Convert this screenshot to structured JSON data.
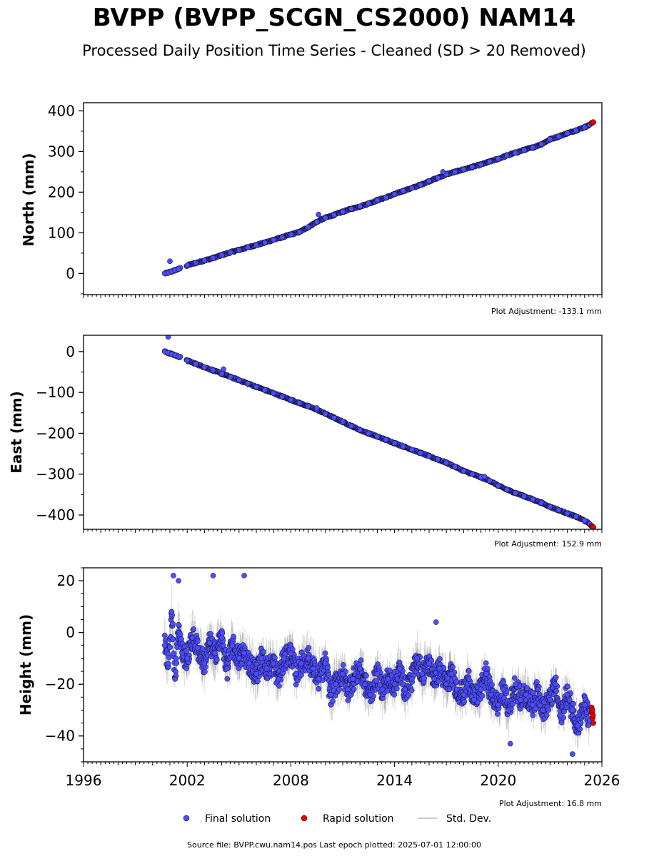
{
  "figure": {
    "title": "BVPP (BVPP_SCGN_CS2000) NAM14",
    "subtitle": "Processed Daily Position Time Series - Cleaned (SD > 20 Removed)",
    "source_note": "Source file: BVPP.cwu.nam14.pos  Last epoch plotted: 2025-07-01 12:00:00"
  },
  "legend": {
    "final_label": "Final solution",
    "rapid_label": "Rapid solution",
    "std_label": "Std. Dev."
  },
  "colors": {
    "final": "#4d4dff",
    "final_edge": "#000000",
    "rapid": "#e60000",
    "std": "#777777"
  },
  "chart_data": [
    {
      "type": "scatter",
      "ylabel": "North (mm)",
      "adjustment": "Plot Adjustment: -133.1 mm",
      "xlim": [
        1996,
        2026
      ],
      "ylim": [
        -52,
        420
      ],
      "yticks": [
        0,
        100,
        200,
        300,
        400
      ],
      "ytick_labels": [
        "0",
        "100",
        "200",
        "300",
        "400"
      ],
      "minor_ystep": 50,
      "series": [
        {
          "name": "Final solution",
          "kind": "final",
          "x": [
            2000.7,
            2000.9,
            2001.1,
            2001.3,
            2001.5,
            2002.0,
            2002.5,
            2003.0,
            2003.5,
            2004.0,
            2004.5,
            2005.0,
            2005.5,
            2006.0,
            2006.5,
            2007.0,
            2007.5,
            2008.0,
            2008.5,
            2009.0,
            2009.5,
            2010.0,
            2010.5,
            2011.0,
            2011.5,
            2012.0,
            2012.5,
            2013.0,
            2013.5,
            2014.0,
            2014.5,
            2015.0,
            2015.5,
            2016.0,
            2016.5,
            2017.0,
            2017.5,
            2018.0,
            2018.5,
            2019.0,
            2019.5,
            2020.0,
            2020.5,
            2021.0,
            2021.5,
            2022.0,
            2022.5,
            2023.0,
            2023.5,
            2024.0,
            2024.5,
            2025.0,
            2025.3
          ],
          "y": [
            0,
            2,
            5,
            8,
            11,
            20,
            26,
            32,
            38,
            45,
            52,
            58,
            64,
            70,
            76,
            83,
            89,
            96,
            102,
            114,
            127,
            137,
            144,
            152,
            159,
            165,
            172,
            180,
            187,
            195,
            203,
            210,
            218,
            227,
            235,
            244,
            250,
            256,
            262,
            268,
            275,
            282,
            290,
            297,
            304,
            310,
            318,
            330,
            337,
            345,
            352,
            360,
            366
          ]
        },
        {
          "name": "Rapid solution",
          "kind": "rapid",
          "x": [
            2025.4,
            2025.45,
            2025.5
          ],
          "y": [
            370,
            371,
            372
          ]
        }
      ],
      "outliers": {
        "x": [
          2001.0,
          2009.6,
          2016.8
        ],
        "y": [
          30,
          145,
          250
        ]
      }
    },
    {
      "type": "scatter",
      "ylabel": "East (mm)",
      "adjustment": "Plot Adjustment: 152.9 mm",
      "xlim": [
        1996,
        2026
      ],
      "ylim": [
        -435,
        40
      ],
      "yticks": [
        0,
        -100,
        -200,
        -300,
        -400
      ],
      "ytick_labels": [
        "0",
        "−100",
        "−200",
        "−300",
        "−400"
      ],
      "minor_ystep": 50,
      "series": [
        {
          "name": "Final solution",
          "kind": "final",
          "x": [
            2000.7,
            2000.9,
            2001.1,
            2001.3,
            2001.5,
            2002.0,
            2002.5,
            2003.0,
            2003.5,
            2004.0,
            2004.5,
            2005.0,
            2005.5,
            2006.0,
            2006.5,
            2007.0,
            2007.5,
            2008.0,
            2008.5,
            2009.0,
            2009.5,
            2010.0,
            2010.5,
            2011.0,
            2011.5,
            2012.0,
            2012.5,
            2013.0,
            2013.5,
            2014.0,
            2014.5,
            2015.0,
            2015.5,
            2016.0,
            2016.5,
            2017.0,
            2017.5,
            2018.0,
            2018.5,
            2019.0,
            2019.5,
            2020.0,
            2020.5,
            2021.0,
            2021.5,
            2022.0,
            2022.5,
            2023.0,
            2023.5,
            2024.0,
            2024.5,
            2025.0,
            2025.3
          ],
          "y": [
            0,
            -3,
            -6,
            -9,
            -12,
            -22,
            -30,
            -38,
            -46,
            -54,
            -62,
            -70,
            -78,
            -86,
            -94,
            -102,
            -110,
            -118,
            -126,
            -134,
            -142,
            -152,
            -162,
            -172,
            -182,
            -192,
            -200,
            -208,
            -216,
            -224,
            -232,
            -240,
            -248,
            -256,
            -264,
            -272,
            -282,
            -292,
            -300,
            -308,
            -316,
            -328,
            -338,
            -346,
            -354,
            -362,
            -370,
            -380,
            -388,
            -396,
            -404,
            -414,
            -422
          ]
        },
        {
          "name": "Rapid solution",
          "kind": "rapid",
          "x": [
            2025.4,
            2025.45,
            2025.5
          ],
          "y": [
            -427,
            -428,
            -430
          ]
        }
      ],
      "outliers": {
        "x": [
          2000.9,
          2004.1,
          2009.5,
          2019.2
        ],
        "y": [
          36,
          -43,
          -138,
          -306
        ]
      }
    },
    {
      "type": "scatter",
      "ylabel": "Height (mm)",
      "adjustment": "Plot Adjustment: 16.8 mm",
      "xlim": [
        1996,
        2026
      ],
      "ylim": [
        -50,
        25
      ],
      "yticks": [
        20,
        0,
        -20,
        -40
      ],
      "ytick_labels": [
        "20",
        "0",
        "−20",
        "−40"
      ],
      "minor_ystep": 5,
      "xticks": [
        1996,
        2002,
        2008,
        2014,
        2020,
        2026
      ],
      "xtick_labels": [
        "1996",
        "2002",
        "2008",
        "2014",
        "2020",
        "2026"
      ],
      "series": [
        {
          "name": "Final solution",
          "kind": "final",
          "x": [
            2000.7,
            2000.9,
            2001.1,
            2001.3,
            2001.5,
            2001.7,
            2002.0,
            2002.3,
            2002.6,
            2003.0,
            2003.3,
            2003.6,
            2004.0,
            2004.3,
            2004.6,
            2005.0,
            2005.3,
            2005.6,
            2006.0,
            2006.3,
            2006.6,
            2007.0,
            2007.3,
            2007.6,
            2008.0,
            2008.3,
            2008.6,
            2009.0,
            2009.3,
            2009.6,
            2010.0,
            2010.3,
            2010.6,
            2011.0,
            2011.3,
            2011.6,
            2012.0,
            2012.3,
            2012.6,
            2013.0,
            2013.3,
            2013.6,
            2014.0,
            2014.3,
            2014.6,
            2015.0,
            2015.3,
            2015.6,
            2016.0,
            2016.3,
            2016.6,
            2017.0,
            2017.3,
            2017.6,
            2018.0,
            2018.3,
            2018.6,
            2019.0,
            2019.3,
            2019.6,
            2020.0,
            2020.3,
            2020.6,
            2021.0,
            2021.3,
            2021.6,
            2022.0,
            2022.3,
            2022.6,
            2023.0,
            2023.3,
            2023.6,
            2024.0,
            2024.3,
            2024.6,
            2025.0,
            2025.3
          ],
          "y": [
            -5,
            -12,
            8,
            -18,
            3,
            -8,
            -10,
            -2,
            -6,
            -12,
            -4,
            -8,
            -2,
            -14,
            -5,
            -10,
            -8,
            -12,
            -16,
            -10,
            -14,
            -12,
            -18,
            -10,
            -8,
            -16,
            -12,
            -10,
            -14,
            -18,
            -12,
            -24,
            -20,
            -16,
            -22,
            -18,
            -14,
            -20,
            -24,
            -16,
            -22,
            -18,
            -20,
            -14,
            -22,
            -18,
            -10,
            -16,
            -12,
            -18,
            -14,
            -20,
            -16,
            -22,
            -24,
            -18,
            -26,
            -22,
            -16,
            -24,
            -28,
            -22,
            -30,
            -20,
            -26,
            -24,
            -28,
            -22,
            -30,
            -26,
            -20,
            -32,
            -24,
            -30,
            -36,
            -28,
            -34
          ]
        },
        {
          "name": "Rapid solution",
          "kind": "rapid",
          "x": [
            2025.4,
            2025.42,
            2025.44,
            2025.46,
            2025.48,
            2025.5
          ],
          "y": [
            -29,
            -31,
            -30,
            -33,
            -32,
            -35
          ]
        }
      ],
      "outliers": {
        "x": [
          2001.2,
          2001.5,
          2003.5,
          2005.3,
          2016.4,
          2020.7,
          2024.3
        ],
        "y": [
          22,
          20,
          22,
          22,
          4,
          -43,
          -47
        ]
      }
    }
  ]
}
